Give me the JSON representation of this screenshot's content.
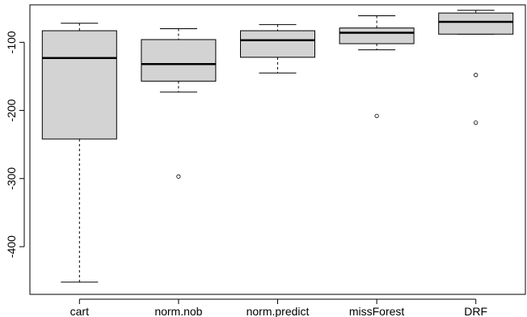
{
  "chart_data": {
    "type": "boxplot",
    "title": "",
    "xlabel": "",
    "ylabel": "",
    "categories": [
      "cart",
      "norm.nob",
      "norm.predict",
      "missForest",
      "DRF"
    ],
    "ylim": [
      -470,
      -45
    ],
    "yticks": [
      -100,
      -200,
      -300,
      -400
    ],
    "ytick_labels": [
      "-100",
      "-200",
      "-300",
      "-400"
    ],
    "grid": false,
    "boxes": [
      {
        "name": "cart",
        "whisker_high": -72,
        "q3": -83,
        "median": -123,
        "q1": -242,
        "whisker_low": -452,
        "outliers": []
      },
      {
        "name": "norm.nob",
        "whisker_high": -80,
        "q3": -96,
        "median": -132,
        "q1": -157,
        "whisker_low": -173,
        "outliers": [
          -297
        ]
      },
      {
        "name": "norm.predict",
        "whisker_high": -74,
        "q3": -83,
        "median": -97,
        "q1": -122,
        "whisker_low": -145,
        "outliers": []
      },
      {
        "name": "missForest",
        "whisker_high": -61,
        "q3": -79,
        "median": -86,
        "q1": -102,
        "whisker_low": -111,
        "outliers": [
          -208
        ]
      },
      {
        "name": "DRF",
        "whisker_high": -53,
        "q3": -57,
        "median": -70,
        "q1": -88,
        "whisker_low": -88,
        "outliers": [
          -148,
          -218
        ]
      }
    ]
  }
}
